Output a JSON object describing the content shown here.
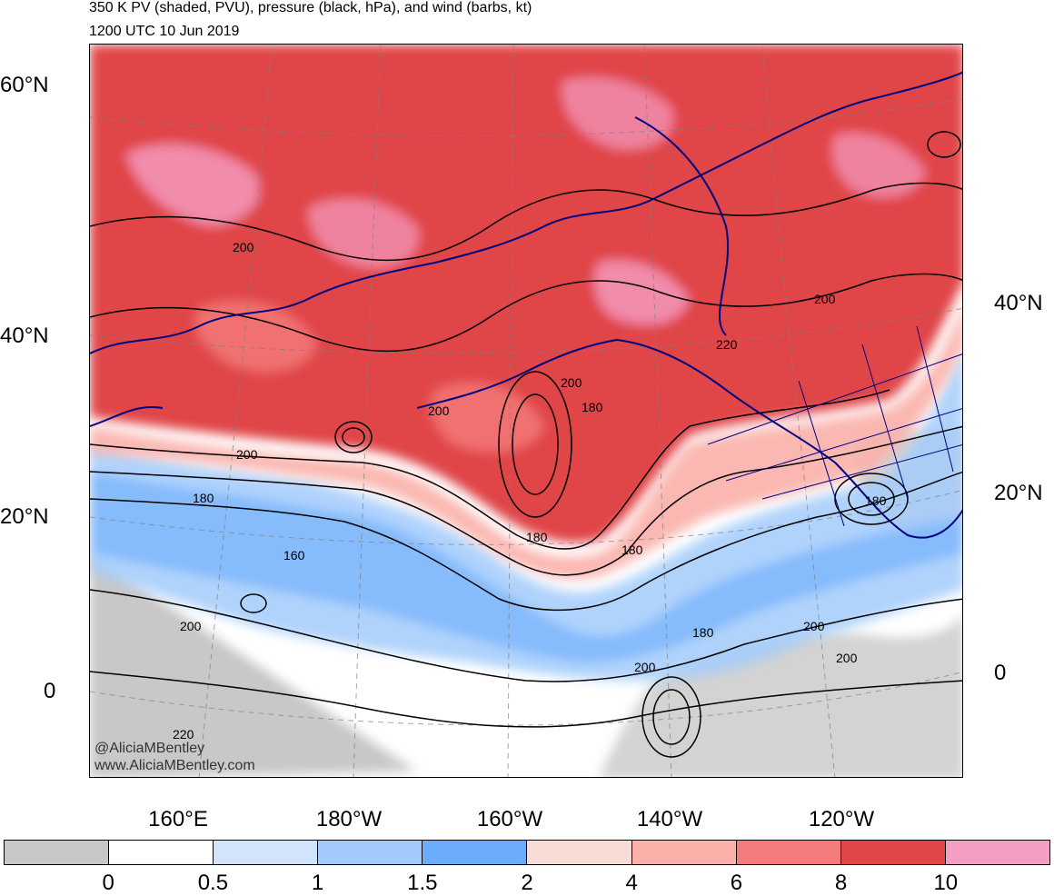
{
  "title": "350 K PV (shaded, PVU), pressure (black, hPa), and wind (barbs, kt)",
  "subtitle": "1200 UTC 10 Jun 2019",
  "lat_labels_left": [
    "60°N",
    "40°N",
    "20°N",
    "0"
  ],
  "lat_labels_right": [
    "40°N",
    "20°N",
    "0"
  ],
  "lon_labels": [
    "160°E",
    "180°W",
    "160°W",
    "140°W",
    "120°W"
  ],
  "colorbar": {
    "colors": [
      "#c8c8c8",
      "#ffffff",
      "#d2e4fc",
      "#a2cbfc",
      "#6aacfb",
      "#fadcd6",
      "#fbb0aa",
      "#f57c7c",
      "#e04547",
      "#f59ec4"
    ],
    "labels": [
      "0",
      "0.5",
      "1",
      "1.5",
      "2",
      "4",
      "6",
      "8",
      "10"
    ]
  },
  "contour_labels": [
    "200",
    "200",
    "200",
    "200",
    "220",
    "200",
    "200",
    "180",
    "180",
    "160",
    "180",
    "180",
    "180",
    "200",
    "200",
    "200",
    "180",
    "220"
  ],
  "credit": [
    "@AliciaMBentley",
    "www.AliciaMBentley.com"
  ],
  "colors": {
    "coastline": "#000080",
    "contour": "#000000",
    "grid": "#808080"
  }
}
